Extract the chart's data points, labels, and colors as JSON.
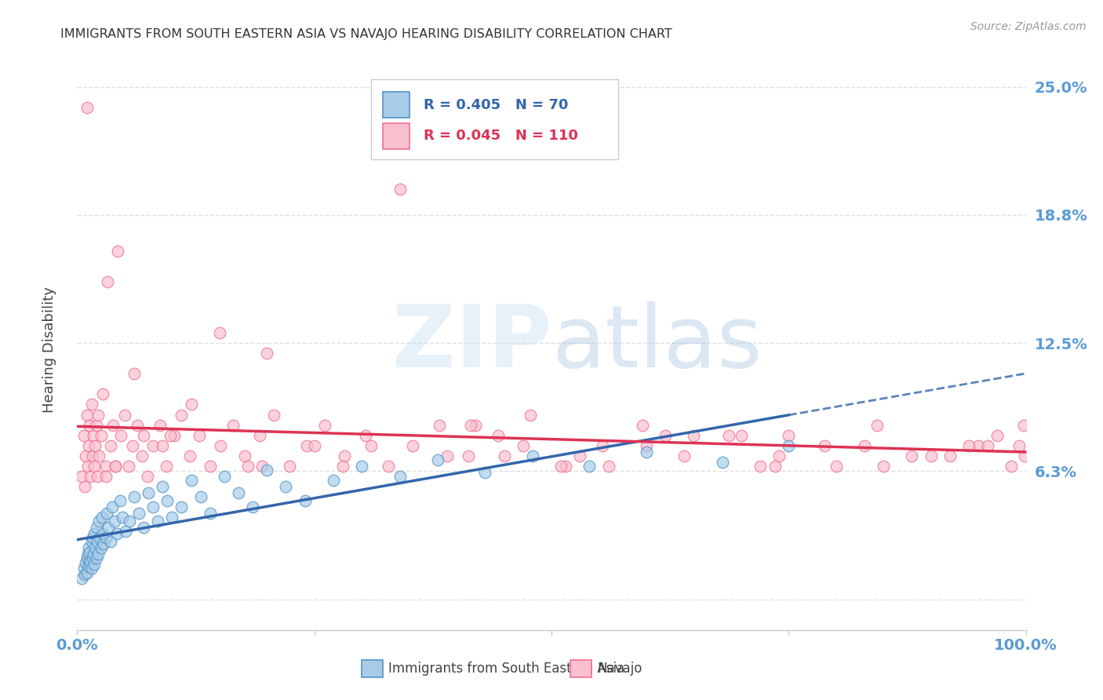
{
  "title": "IMMIGRANTS FROM SOUTH EASTERN ASIA VS NAVAJO HEARING DISABILITY CORRELATION CHART",
  "source": "Source: ZipAtlas.com",
  "ylabel": "Hearing Disability",
  "yticks": [
    0.0,
    0.0625,
    0.125,
    0.1875,
    0.25
  ],
  "ytick_labels": [
    "",
    "6.3%",
    "12.5%",
    "18.8%",
    "25.0%"
  ],
  "xlim": [
    0.0,
    1.0
  ],
  "ylim": [
    -0.015,
    0.265
  ],
  "blue_R": 0.405,
  "blue_N": 70,
  "pink_R": 0.045,
  "pink_N": 110,
  "blue_fill_color": "#a8cce8",
  "pink_fill_color": "#f9c0cf",
  "blue_edge_color": "#4f93c8",
  "pink_edge_color": "#f07090",
  "blue_line_color": "#3366aa",
  "pink_line_color": "#dd3355",
  "axis_label_color": "#5b9bd5",
  "title_color": "#333333",
  "grid_color": "#e0e0e0",
  "background_color": "#ffffff",
  "blue_scatter_x": [
    0.005,
    0.007,
    0.008,
    0.009,
    0.01,
    0.01,
    0.011,
    0.012,
    0.012,
    0.013,
    0.013,
    0.014,
    0.015,
    0.015,
    0.016,
    0.016,
    0.017,
    0.018,
    0.018,
    0.019,
    0.02,
    0.02,
    0.021,
    0.022,
    0.023,
    0.024,
    0.025,
    0.026,
    0.027,
    0.028,
    0.03,
    0.031,
    0.033,
    0.035,
    0.037,
    0.039,
    0.042,
    0.045,
    0.048,
    0.051,
    0.055,
    0.06,
    0.065,
    0.07,
    0.075,
    0.08,
    0.085,
    0.09,
    0.095,
    0.1,
    0.11,
    0.12,
    0.13,
    0.14,
    0.155,
    0.17,
    0.185,
    0.2,
    0.22,
    0.24,
    0.27,
    0.3,
    0.34,
    0.38,
    0.43,
    0.48,
    0.54,
    0.6,
    0.68,
    0.75
  ],
  "blue_scatter_y": [
    0.01,
    0.015,
    0.012,
    0.018,
    0.02,
    0.013,
    0.022,
    0.016,
    0.025,
    0.018,
    0.023,
    0.019,
    0.015,
    0.028,
    0.02,
    0.03,
    0.022,
    0.017,
    0.032,
    0.025,
    0.02,
    0.035,
    0.028,
    0.022,
    0.038,
    0.03,
    0.025,
    0.04,
    0.032,
    0.027,
    0.03,
    0.042,
    0.035,
    0.028,
    0.045,
    0.038,
    0.032,
    0.048,
    0.04,
    0.033,
    0.038,
    0.05,
    0.042,
    0.035,
    0.052,
    0.045,
    0.038,
    0.055,
    0.048,
    0.04,
    0.045,
    0.058,
    0.05,
    0.042,
    0.06,
    0.052,
    0.045,
    0.063,
    0.055,
    0.048,
    0.058,
    0.065,
    0.06,
    0.068,
    0.062,
    0.07,
    0.065,
    0.072,
    0.067,
    0.075
  ],
  "pink_scatter_x": [
    0.005,
    0.007,
    0.008,
    0.009,
    0.01,
    0.011,
    0.012,
    0.013,
    0.014,
    0.015,
    0.016,
    0.017,
    0.018,
    0.019,
    0.02,
    0.021,
    0.022,
    0.023,
    0.025,
    0.027,
    0.03,
    0.032,
    0.035,
    0.038,
    0.04,
    0.043,
    0.046,
    0.05,
    0.054,
    0.058,
    0.063,
    0.068,
    0.074,
    0.08,
    0.087,
    0.094,
    0.102,
    0.11,
    0.119,
    0.129,
    0.14,
    0.151,
    0.164,
    0.177,
    0.192,
    0.207,
    0.224,
    0.242,
    0.261,
    0.282,
    0.304,
    0.328,
    0.354,
    0.382,
    0.412,
    0.444,
    0.478,
    0.515,
    0.554,
    0.596,
    0.64,
    0.687,
    0.736,
    0.788,
    0.843,
    0.9,
    0.95,
    0.97,
    0.985,
    0.993,
    0.998,
    0.999,
    0.06,
    0.12,
    0.18,
    0.25,
    0.34,
    0.42,
    0.51,
    0.6,
    0.7,
    0.8,
    0.88,
    0.94,
    0.03,
    0.07,
    0.15,
    0.28,
    0.39,
    0.47,
    0.56,
    0.65,
    0.74,
    0.83,
    0.01,
    0.04,
    0.09,
    0.2,
    0.45,
    0.75,
    0.85,
    0.92,
    0.96,
    0.098,
    0.195,
    0.31,
    0.415,
    0.53,
    0.62,
    0.72
  ],
  "pink_scatter_y": [
    0.06,
    0.08,
    0.055,
    0.07,
    0.09,
    0.065,
    0.075,
    0.085,
    0.06,
    0.095,
    0.07,
    0.08,
    0.065,
    0.075,
    0.085,
    0.06,
    0.09,
    0.07,
    0.08,
    0.1,
    0.065,
    0.155,
    0.075,
    0.085,
    0.065,
    0.17,
    0.08,
    0.09,
    0.065,
    0.075,
    0.085,
    0.07,
    0.06,
    0.075,
    0.085,
    0.065,
    0.08,
    0.09,
    0.07,
    0.08,
    0.065,
    0.075,
    0.085,
    0.07,
    0.08,
    0.09,
    0.065,
    0.075,
    0.085,
    0.07,
    0.08,
    0.065,
    0.075,
    0.085,
    0.07,
    0.08,
    0.09,
    0.065,
    0.075,
    0.085,
    0.07,
    0.08,
    0.065,
    0.075,
    0.085,
    0.07,
    0.075,
    0.08,
    0.065,
    0.075,
    0.085,
    0.07,
    0.11,
    0.095,
    0.065,
    0.075,
    0.2,
    0.085,
    0.065,
    0.075,
    0.08,
    0.065,
    0.07,
    0.075,
    0.06,
    0.08,
    0.13,
    0.065,
    0.07,
    0.075,
    0.065,
    0.08,
    0.07,
    0.075,
    0.24,
    0.065,
    0.075,
    0.12,
    0.07,
    0.08,
    0.065,
    0.07,
    0.075,
    0.08,
    0.065,
    0.075,
    0.085,
    0.07,
    0.08,
    0.065
  ]
}
